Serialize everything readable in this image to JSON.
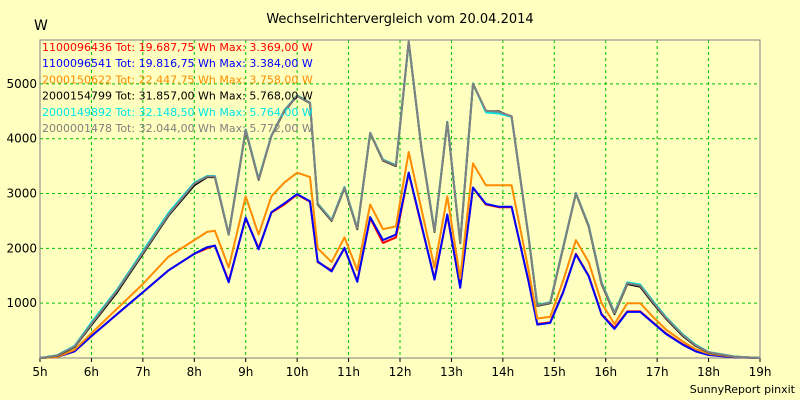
{
  "chart_data": {
    "type": "line",
    "title": "Wechselrichtervergleich vom 20.04.2014",
    "ylabel": "W",
    "xlabel": "",
    "footer": "SunnyReport pinxit",
    "x_ticks": [
      "5h",
      "6h",
      "7h",
      "8h",
      "9h",
      "10h",
      "11h",
      "12h",
      "13h",
      "14h",
      "15h",
      "16h",
      "17h",
      "18h",
      "19h"
    ],
    "y_ticks": [
      "1000",
      "2000",
      "3000",
      "4000",
      "5000"
    ],
    "xlim": [
      5,
      19
    ],
    "ylim": [
      0,
      5800
    ],
    "grid": true,
    "legend_position": "top-left",
    "series": [
      {
        "name": "1100096436 Tot: 19.687,75 Wh Max: 3.369,00 W",
        "color": "#ff0000",
        "points": [
          [
            5.0,
            0
          ],
          [
            5.33,
            20
          ],
          [
            5.67,
            120
          ],
          [
            6.0,
            400
          ],
          [
            6.5,
            800
          ],
          [
            7.0,
            1200
          ],
          [
            7.5,
            1600
          ],
          [
            8.0,
            1900
          ],
          [
            8.25,
            2000
          ],
          [
            8.4,
            2050
          ],
          [
            8.67,
            1400
          ],
          [
            9.0,
            2550
          ],
          [
            9.25,
            2000
          ],
          [
            9.5,
            2650
          ],
          [
            9.75,
            2800
          ],
          [
            10.0,
            2980
          ],
          [
            10.25,
            2850
          ],
          [
            10.4,
            1750
          ],
          [
            10.67,
            1600
          ],
          [
            10.92,
            2000
          ],
          [
            11.17,
            1400
          ],
          [
            11.42,
            2550
          ],
          [
            11.67,
            2100
          ],
          [
            11.92,
            2200
          ],
          [
            12.17,
            3370
          ],
          [
            12.42,
            2400
          ],
          [
            12.67,
            1450
          ],
          [
            12.92,
            2600
          ],
          [
            13.17,
            1300
          ],
          [
            13.42,
            3100
          ],
          [
            13.67,
            2800
          ],
          [
            13.92,
            2750
          ],
          [
            14.17,
            2750
          ],
          [
            14.5,
            1400
          ],
          [
            14.67,
            620
          ],
          [
            14.92,
            650
          ],
          [
            15.17,
            1200
          ],
          [
            15.42,
            1900
          ],
          [
            15.67,
            1500
          ],
          [
            15.92,
            800
          ],
          [
            16.17,
            550
          ],
          [
            16.42,
            850
          ],
          [
            16.67,
            850
          ],
          [
            16.92,
            650
          ],
          [
            17.17,
            450
          ],
          [
            17.5,
            250
          ],
          [
            17.75,
            130
          ],
          [
            18.0,
            60
          ],
          [
            18.5,
            15
          ],
          [
            19.0,
            0
          ]
        ]
      },
      {
        "name": "1100096541 Tot: 19.816,75 Wh Max: 3.384,00 W",
        "color": "#0000ff",
        "points": [
          [
            5.0,
            0
          ],
          [
            5.33,
            20
          ],
          [
            5.67,
            120
          ],
          [
            6.0,
            400
          ],
          [
            6.5,
            800
          ],
          [
            7.0,
            1200
          ],
          [
            7.5,
            1600
          ],
          [
            8.0,
            1900
          ],
          [
            8.25,
            2020
          ],
          [
            8.4,
            2050
          ],
          [
            8.67,
            1380
          ],
          [
            9.0,
            2560
          ],
          [
            9.25,
            1980
          ],
          [
            9.5,
            2660
          ],
          [
            9.75,
            2820
          ],
          [
            10.0,
            2990
          ],
          [
            10.25,
            2860
          ],
          [
            10.4,
            1760
          ],
          [
            10.67,
            1580
          ],
          [
            10.92,
            2010
          ],
          [
            11.17,
            1390
          ],
          [
            11.42,
            2570
          ],
          [
            11.67,
            2150
          ],
          [
            11.92,
            2250
          ],
          [
            12.17,
            3384
          ],
          [
            12.42,
            2420
          ],
          [
            12.67,
            1430
          ],
          [
            12.92,
            2620
          ],
          [
            13.17,
            1280
          ],
          [
            13.42,
            3110
          ],
          [
            13.67,
            2810
          ],
          [
            13.92,
            2760
          ],
          [
            14.17,
            2760
          ],
          [
            14.5,
            1390
          ],
          [
            14.67,
            610
          ],
          [
            14.92,
            640
          ],
          [
            15.17,
            1190
          ],
          [
            15.42,
            1890
          ],
          [
            15.67,
            1490
          ],
          [
            15.92,
            790
          ],
          [
            16.17,
            530
          ],
          [
            16.42,
            840
          ],
          [
            16.67,
            840
          ],
          [
            16.92,
            640
          ],
          [
            17.17,
            440
          ],
          [
            17.5,
            240
          ],
          [
            17.75,
            120
          ],
          [
            18.0,
            55
          ],
          [
            18.5,
            12
          ],
          [
            19.0,
            0
          ]
        ]
      },
      {
        "name": "2000150622 Tot: 22.447,75 Wh Max: 3.758,00 W",
        "color": "#ff8c00",
        "points": [
          [
            5.0,
            0
          ],
          [
            5.33,
            20
          ],
          [
            5.67,
            150
          ],
          [
            6.0,
            450
          ],
          [
            6.5,
            900
          ],
          [
            7.0,
            1350
          ],
          [
            7.5,
            1850
          ],
          [
            8.0,
            2150
          ],
          [
            8.25,
            2300
          ],
          [
            8.4,
            2320
          ],
          [
            8.67,
            1650
          ],
          [
            9.0,
            2950
          ],
          [
            9.25,
            2250
          ],
          [
            9.5,
            2950
          ],
          [
            9.75,
            3200
          ],
          [
            10.0,
            3380
          ],
          [
            10.25,
            3300
          ],
          [
            10.4,
            2000
          ],
          [
            10.67,
            1750
          ],
          [
            10.92,
            2200
          ],
          [
            11.17,
            1600
          ],
          [
            11.42,
            2800
          ],
          [
            11.67,
            2350
          ],
          [
            11.92,
            2400
          ],
          [
            12.17,
            3758
          ],
          [
            12.42,
            2700
          ],
          [
            12.67,
            1650
          ],
          [
            12.92,
            2950
          ],
          [
            13.17,
            1450
          ],
          [
            13.42,
            3550
          ],
          [
            13.67,
            3150
          ],
          [
            13.92,
            3150
          ],
          [
            14.17,
            3150
          ],
          [
            14.5,
            1600
          ],
          [
            14.67,
            720
          ],
          [
            14.92,
            750
          ],
          [
            15.17,
            1400
          ],
          [
            15.42,
            2150
          ],
          [
            15.67,
            1750
          ],
          [
            15.92,
            1000
          ],
          [
            16.17,
            620
          ],
          [
            16.42,
            1000
          ],
          [
            16.67,
            1000
          ],
          [
            16.92,
            750
          ],
          [
            17.17,
            520
          ],
          [
            17.5,
            300
          ],
          [
            17.75,
            160
          ],
          [
            18.0,
            80
          ],
          [
            18.5,
            20
          ],
          [
            19.0,
            0
          ]
        ]
      },
      {
        "name": "2000154799 Tot: 31.857,00 Wh Max: 5.768,00 W",
        "color": "#000000",
        "points": [
          [
            5.0,
            0
          ],
          [
            5.33,
            40
          ],
          [
            5.67,
            200
          ],
          [
            6.0,
            600
          ],
          [
            6.5,
            1200
          ],
          [
            7.0,
            1900
          ],
          [
            7.5,
            2600
          ],
          [
            8.0,
            3150
          ],
          [
            8.25,
            3300
          ],
          [
            8.4,
            3300
          ],
          [
            8.67,
            2250
          ],
          [
            9.0,
            4150
          ],
          [
            9.25,
            3250
          ],
          [
            9.5,
            4050
          ],
          [
            9.75,
            4500
          ],
          [
            10.0,
            4780
          ],
          [
            10.25,
            4650
          ],
          [
            10.4,
            2800
          ],
          [
            10.67,
            2500
          ],
          [
            10.92,
            3100
          ],
          [
            11.17,
            2350
          ],
          [
            11.42,
            4100
          ],
          [
            11.67,
            3600
          ],
          [
            11.92,
            3500
          ],
          [
            12.17,
            5768
          ],
          [
            12.42,
            3800
          ],
          [
            12.67,
            2300
          ],
          [
            12.92,
            4300
          ],
          [
            13.17,
            2100
          ],
          [
            13.42,
            5000
          ],
          [
            13.67,
            4500
          ],
          [
            13.92,
            4500
          ],
          [
            14.17,
            4400
          ],
          [
            14.5,
            2200
          ],
          [
            14.67,
            950
          ],
          [
            14.92,
            1000
          ],
          [
            15.17,
            2000
          ],
          [
            15.42,
            3000
          ],
          [
            15.67,
            2400
          ],
          [
            15.92,
            1350
          ],
          [
            16.17,
            800
          ],
          [
            16.42,
            1350
          ],
          [
            16.67,
            1300
          ],
          [
            16.92,
            1000
          ],
          [
            17.17,
            720
          ],
          [
            17.5,
            400
          ],
          [
            17.75,
            220
          ],
          [
            18.0,
            100
          ],
          [
            18.5,
            25
          ],
          [
            19.0,
            0
          ]
        ]
      },
      {
        "name": "2000149892 Tot: 32.148,50 Wh Max: 5.764,00 W",
        "color": "#00e5e5",
        "points": [
          [
            5.0,
            0
          ],
          [
            5.33,
            50
          ],
          [
            5.67,
            220
          ],
          [
            6.0,
            650
          ],
          [
            6.5,
            1250
          ],
          [
            7.0,
            1950
          ],
          [
            7.5,
            2650
          ],
          [
            8.0,
            3200
          ],
          [
            8.25,
            3320
          ],
          [
            8.4,
            3320
          ],
          [
            8.67,
            2260
          ],
          [
            9.0,
            4170
          ],
          [
            9.25,
            3270
          ],
          [
            9.5,
            4060
          ],
          [
            9.75,
            4520
          ],
          [
            10.0,
            4790
          ],
          [
            10.25,
            4660
          ],
          [
            10.4,
            2820
          ],
          [
            10.67,
            2520
          ],
          [
            10.92,
            3120
          ],
          [
            11.17,
            2370
          ],
          [
            11.42,
            4110
          ],
          [
            11.67,
            3620
          ],
          [
            11.92,
            3520
          ],
          [
            12.17,
            5764
          ],
          [
            12.42,
            3820
          ],
          [
            12.67,
            2320
          ],
          [
            12.92,
            4310
          ],
          [
            13.17,
            2120
          ],
          [
            13.42,
            5010
          ],
          [
            13.67,
            4480
          ],
          [
            13.92,
            4460
          ],
          [
            14.17,
            4400
          ],
          [
            14.5,
            2220
          ],
          [
            14.67,
            970
          ],
          [
            14.92,
            1020
          ],
          [
            15.17,
            2020
          ],
          [
            15.42,
            3010
          ],
          [
            15.67,
            2420
          ],
          [
            15.92,
            1380
          ],
          [
            16.17,
            830
          ],
          [
            16.42,
            1380
          ],
          [
            16.67,
            1340
          ],
          [
            16.92,
            1040
          ],
          [
            17.17,
            750
          ],
          [
            17.5,
            430
          ],
          [
            17.75,
            240
          ],
          [
            18.0,
            110
          ],
          [
            18.5,
            28
          ],
          [
            19.0,
            0
          ]
        ]
      },
      {
        "name": "2000001478 Tot: 32.044,00 Wh Max: 5.772,00 W",
        "color": "#808080",
        "points": [
          [
            5.0,
            0
          ],
          [
            5.33,
            45
          ],
          [
            5.67,
            210
          ],
          [
            6.0,
            620
          ],
          [
            6.5,
            1230
          ],
          [
            7.0,
            1920
          ],
          [
            7.5,
            2620
          ],
          [
            8.0,
            3180
          ],
          [
            8.25,
            3310
          ],
          [
            8.4,
            3310
          ],
          [
            8.67,
            2255
          ],
          [
            9.0,
            4160
          ],
          [
            9.25,
            3260
          ],
          [
            9.5,
            4055
          ],
          [
            9.75,
            4510
          ],
          [
            10.0,
            4785
          ],
          [
            10.25,
            4655
          ],
          [
            10.4,
            2810
          ],
          [
            10.67,
            2510
          ],
          [
            10.92,
            3110
          ],
          [
            11.17,
            2360
          ],
          [
            11.42,
            4105
          ],
          [
            11.67,
            3610
          ],
          [
            11.92,
            3510
          ],
          [
            12.17,
            5772
          ],
          [
            12.42,
            3810
          ],
          [
            12.67,
            2310
          ],
          [
            12.92,
            4305
          ],
          [
            13.17,
            2110
          ],
          [
            13.42,
            5005
          ],
          [
            13.67,
            4510
          ],
          [
            13.92,
            4490
          ],
          [
            14.17,
            4410
          ],
          [
            14.5,
            2210
          ],
          [
            14.67,
            960
          ],
          [
            14.92,
            1010
          ],
          [
            15.17,
            2010
          ],
          [
            15.42,
            3005
          ],
          [
            15.67,
            2410
          ],
          [
            15.92,
            1365
          ],
          [
            16.17,
            815
          ],
          [
            16.42,
            1365
          ],
          [
            16.67,
            1320
          ],
          [
            16.92,
            1020
          ],
          [
            17.17,
            735
          ],
          [
            17.5,
            415
          ],
          [
            17.75,
            230
          ],
          [
            18.0,
            105
          ],
          [
            18.5,
            26
          ],
          [
            19.0,
            0
          ]
        ]
      }
    ]
  }
}
